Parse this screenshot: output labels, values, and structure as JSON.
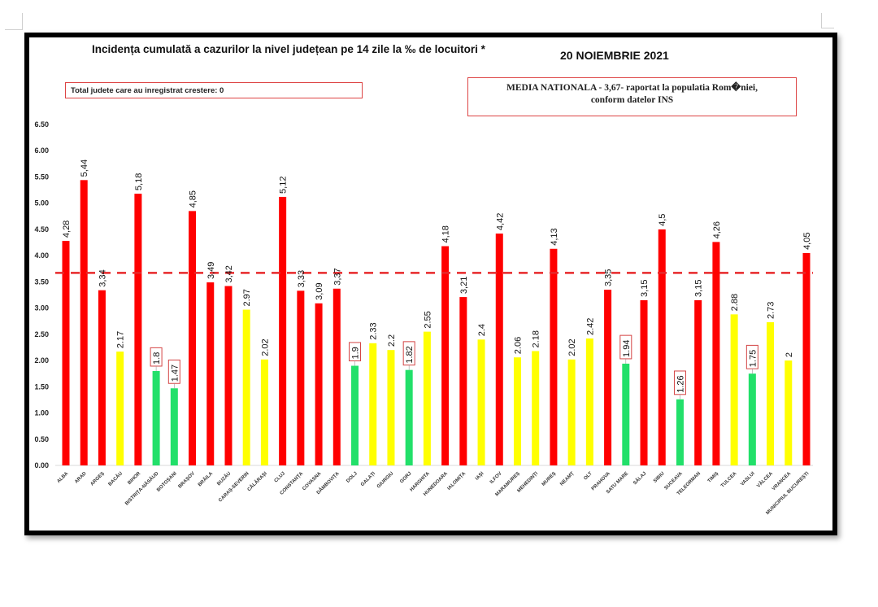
{
  "header": {
    "title": "Incidența cumulată a cazurilor la nivel județean pe 14 zile la ‰ de locuitori *",
    "date": "20 NOIEMBRIE 2021"
  },
  "info_left": "Total judete care au inregistrat crestere: 0",
  "info_right": {
    "line1": "MEDIA NATIONALA - 3,67-  raportat la populatia Rom�niei,",
    "line2": "conform datelor INS"
  },
  "colors": {
    "red": "#ff0000",
    "yellow": "#ffff00",
    "green": "#22e06a",
    "mean_line": "#e8282a",
    "label_box": "#d44444"
  },
  "chart_data": {
    "type": "bar",
    "title": "Incidența cumulată a cazurilor la nivel județean pe 14 zile la ‰ de locuitori *",
    "xlabel": "",
    "ylabel": "",
    "ylim": [
      0,
      6.5
    ],
    "yticks": [
      "0.00",
      "0.50",
      "1.00",
      "1.50",
      "2.00",
      "2.50",
      "3.00",
      "3.50",
      "4.00",
      "4.50",
      "5.00",
      "5.50",
      "6.00",
      "6.50"
    ],
    "reference_line": {
      "value": 3.67,
      "label": "MEDIA NATIONALA",
      "style": "dashed"
    },
    "grid": false,
    "categories": [
      "ALBA",
      "ARAD",
      "ARGEȘ",
      "BACĂU",
      "BIHOR",
      "BISTRIȚA-NĂSĂUD",
      "BOTOȘANI",
      "BRAȘOV",
      "BRĂILA",
      "BUZĂU",
      "CARAȘ-SEVERIN",
      "CĂLĂRAȘI",
      "CLUJ",
      "CONSTANȚA",
      "COVASNA",
      "DÂMBOVIȚA",
      "DOLJ",
      "GALAȚI",
      "GIURGIU",
      "GORJ",
      "HARGHITA",
      "HUNEDOARA",
      "IALOMIȚA",
      "IAȘI",
      "ILFOV",
      "MARAMUREȘ",
      "MEHEDINȚI",
      "MUREȘ",
      "NEAMȚ",
      "OLT",
      "PRAHOVA",
      "SATU MARE",
      "SĂLAJ",
      "SIBIU",
      "SUCEAVA",
      "TELEORMAN",
      "TIMIȘ",
      "TULCEA",
      "VASLUI",
      "VÂLCEA",
      "VRANCEA",
      "MUNICIPIUL BUCUREȘTI"
    ],
    "values": [
      4.28,
      5.44,
      3.34,
      2.17,
      5.18,
      1.8,
      1.47,
      4.85,
      3.49,
      3.42,
      2.97,
      2.02,
      5.12,
      3.33,
      3.09,
      3.37,
      1.9,
      2.33,
      2.2,
      1.82,
      2.55,
      4.18,
      3.21,
      2.4,
      4.42,
      2.06,
      2.18,
      4.13,
      2.02,
      2.42,
      3.35,
      1.94,
      3.15,
      4.5,
      1.26,
      3.15,
      4.26,
      2.88,
      1.75,
      2.73,
      2,
      4.05
    ],
    "data_labels": [
      "4,28",
      "5,44",
      "3,34",
      "2.17",
      "5,18",
      "1.8",
      "1.47",
      "4,85",
      "3,49",
      "3,42",
      "2.97",
      "2.02",
      "5,12",
      "3,33",
      "3,09",
      "3,37",
      "1.9",
      "2.33",
      "2.2",
      "1.82",
      "2.55",
      "4,18",
      "3,21",
      "2.4",
      "4,42",
      "2.06",
      "2.18",
      "4,13",
      "2.02",
      "2.42",
      "3,35",
      "1.94",
      "3,15",
      "4,5",
      "1.26",
      "3,15",
      "4,26",
      "2.88",
      "1.75",
      "2.73",
      "2",
      "4,05"
    ],
    "bar_colors": [
      "red",
      "red",
      "red",
      "yellow",
      "red",
      "green",
      "green",
      "red",
      "red",
      "red",
      "yellow",
      "yellow",
      "red",
      "red",
      "red",
      "red",
      "green",
      "yellow",
      "yellow",
      "green",
      "yellow",
      "red",
      "red",
      "yellow",
      "red",
      "yellow",
      "yellow",
      "red",
      "yellow",
      "yellow",
      "red",
      "green",
      "red",
      "red",
      "green",
      "red",
      "red",
      "yellow",
      "green",
      "yellow",
      "yellow",
      "red"
    ]
  }
}
